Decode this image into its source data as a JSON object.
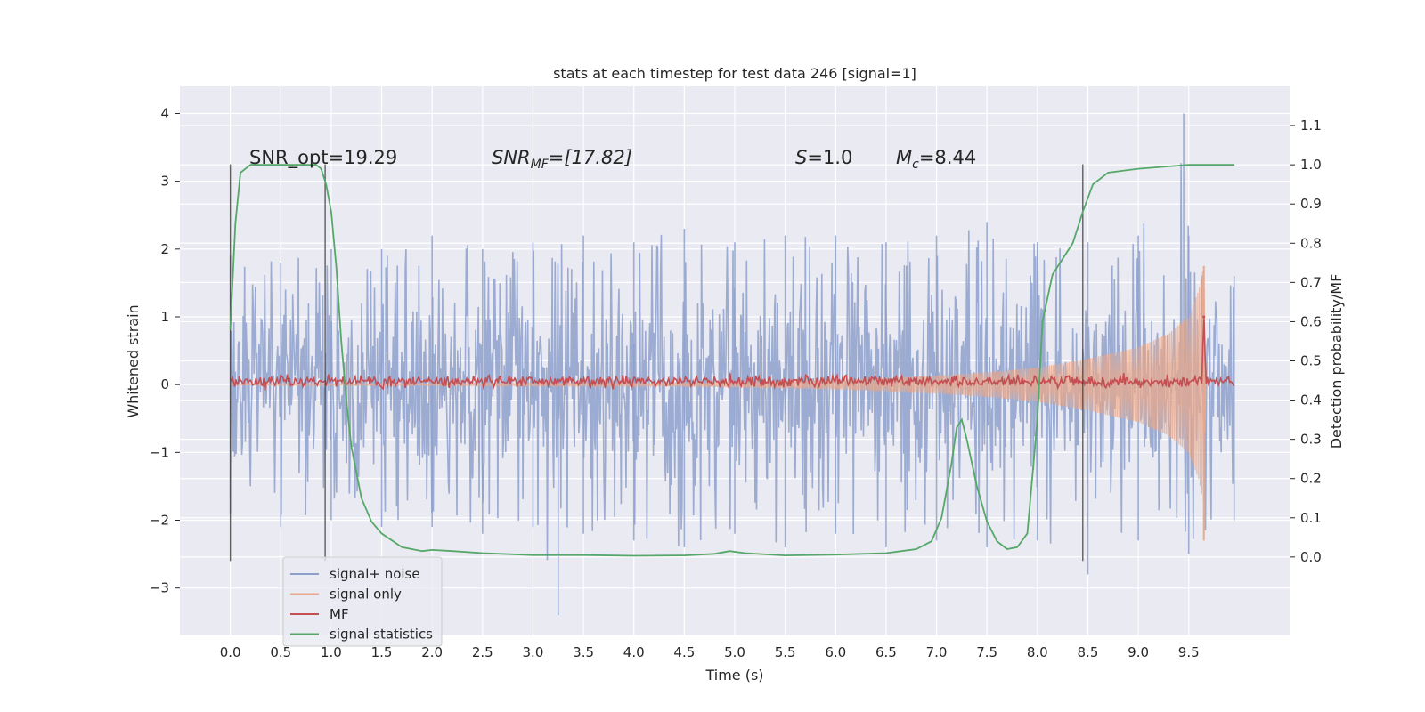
{
  "chart_data": {
    "type": "line",
    "title": "stats at each timestep for test data 246 [signal=1]",
    "xlabel": "Time (s)",
    "ylabel": "Whitened strain",
    "ylabel_right": "Detection probability/MF",
    "xlim": [
      -0.5,
      10.5
    ],
    "ylim": [
      -3.7,
      4.4
    ],
    "ylim_right": [
      -0.2,
      1.2
    ],
    "xticks": [
      "0.0",
      "0.5",
      "1.0",
      "1.5",
      "2.0",
      "2.5",
      "3.0",
      "3.5",
      "4.0",
      "4.5",
      "5.0",
      "5.5",
      "6.0",
      "6.5",
      "7.0",
      "7.5",
      "8.0",
      "8.5",
      "9.0",
      "9.5"
    ],
    "yticks": [
      "−3",
      "−2",
      "−1",
      "0",
      "1",
      "2",
      "3",
      "4"
    ],
    "yticks_right": [
      "0.0",
      "0.1",
      "0.2",
      "0.3",
      "0.4",
      "0.5",
      "0.6",
      "0.7",
      "0.8",
      "0.9",
      "1.0",
      "1.1"
    ],
    "grid": true,
    "legend_position": "lower-left",
    "annotations": {
      "snr_opt": "SNR_opt=19.29",
      "snr_mf_sym": "SNR",
      "snr_mf_sub": "MF",
      "snr_mf_val": "=[17.82]",
      "s_sym": "S",
      "s_val": "=1.0",
      "mc_sym": "M",
      "mc_sub": "c",
      "mc_val": "=8.44"
    },
    "vlines_s": [
      0.0,
      0.94,
      8.45
    ],
    "series": [
      {
        "name": "signal+ noise",
        "color": "#8da0cb",
        "description_envelope_upper": [
          [
            0.0,
            1.9
          ],
          [
            0.5,
            1.8
          ],
          [
            1.0,
            2.0
          ],
          [
            1.5,
            2.0
          ],
          [
            2.0,
            2.2
          ],
          [
            2.5,
            2.0
          ],
          [
            3.0,
            2.1
          ],
          [
            3.5,
            2.2
          ],
          [
            4.0,
            2.1
          ],
          [
            4.5,
            2.3
          ],
          [
            5.0,
            2.1
          ],
          [
            5.5,
            2.2
          ],
          [
            6.0,
            2.2
          ],
          [
            6.5,
            2.1
          ],
          [
            7.0,
            2.2
          ],
          [
            7.5,
            2.4
          ],
          [
            8.0,
            2.1
          ],
          [
            8.5,
            2.1
          ],
          [
            9.0,
            2.2
          ],
          [
            9.45,
            4.0
          ],
          [
            9.5,
            2.2
          ],
          [
            9.95,
            1.6
          ]
        ],
        "description_envelope_lower": [
          [
            0.0,
            -1.9
          ],
          [
            0.5,
            -2.1
          ],
          [
            1.0,
            -2.0
          ],
          [
            1.5,
            -2.1
          ],
          [
            2.0,
            -2.1
          ],
          [
            2.5,
            -2.2
          ],
          [
            3.0,
            -2.1
          ],
          [
            3.25,
            -3.4
          ],
          [
            3.5,
            -2.2
          ],
          [
            4.0,
            -2.3
          ],
          [
            4.5,
            -2.4
          ],
          [
            5.0,
            -2.2
          ],
          [
            5.5,
            -2.4
          ],
          [
            6.0,
            -2.2
          ],
          [
            6.5,
            -2.4
          ],
          [
            7.0,
            -2.3
          ],
          [
            7.5,
            -2.4
          ],
          [
            8.0,
            -2.3
          ],
          [
            8.5,
            -2.8
          ],
          [
            9.0,
            -2.3
          ],
          [
            9.5,
            -2.5
          ],
          [
            9.95,
            -2.0
          ]
        ]
      },
      {
        "name": "signal only",
        "color": "#e8a88b",
        "envelope": [
          [
            0.0,
            0.005
          ],
          [
            2.0,
            0.01
          ],
          [
            4.0,
            0.02
          ],
          [
            5.0,
            0.04
          ],
          [
            6.0,
            0.07
          ],
          [
            7.0,
            0.13
          ],
          [
            7.5,
            0.18
          ],
          [
            8.0,
            0.25
          ],
          [
            8.5,
            0.38
          ],
          [
            9.0,
            0.55
          ],
          [
            9.3,
            0.75
          ],
          [
            9.5,
            1.0
          ],
          [
            9.6,
            1.4
          ],
          [
            9.65,
            1.75
          ],
          [
            9.67,
            0.0
          ]
        ]
      },
      {
        "name": "MF",
        "color": "#c44e52",
        "baseline": 0.05,
        "peak": [
          9.65,
          1.0
        ]
      },
      {
        "name": "signal statistics",
        "color": "#55a868",
        "points": [
          [
            0.0,
            0.58
          ],
          [
            0.05,
            0.85
          ],
          [
            0.1,
            0.98
          ],
          [
            0.2,
            1.0
          ],
          [
            0.6,
            1.0
          ],
          [
            0.85,
            1.0
          ],
          [
            0.9,
            0.99
          ],
          [
            0.95,
            0.95
          ],
          [
            1.0,
            0.88
          ],
          [
            1.05,
            0.74
          ],
          [
            1.1,
            0.55
          ],
          [
            1.15,
            0.4
          ],
          [
            1.2,
            0.28
          ],
          [
            1.3,
            0.15
          ],
          [
            1.4,
            0.09
          ],
          [
            1.5,
            0.06
          ],
          [
            1.7,
            0.025
          ],
          [
            1.9,
            0.015
          ],
          [
            2.0,
            0.018
          ],
          [
            2.2,
            0.015
          ],
          [
            2.5,
            0.01
          ],
          [
            3.0,
            0.005
          ],
          [
            3.5,
            0.005
          ],
          [
            4.0,
            0.003
          ],
          [
            4.5,
            0.004
          ],
          [
            4.8,
            0.008
          ],
          [
            4.95,
            0.015
          ],
          [
            5.1,
            0.01
          ],
          [
            5.5,
            0.004
          ],
          [
            6.0,
            0.006
          ],
          [
            6.5,
            0.01
          ],
          [
            6.8,
            0.02
          ],
          [
            6.95,
            0.04
          ],
          [
            7.05,
            0.1
          ],
          [
            7.15,
            0.24
          ],
          [
            7.2,
            0.33
          ],
          [
            7.25,
            0.35
          ],
          [
            7.3,
            0.3
          ],
          [
            7.4,
            0.18
          ],
          [
            7.5,
            0.09
          ],
          [
            7.6,
            0.04
          ],
          [
            7.7,
            0.02
          ],
          [
            7.8,
            0.025
          ],
          [
            7.9,
            0.06
          ],
          [
            8.0,
            0.35
          ],
          [
            8.05,
            0.6
          ],
          [
            8.15,
            0.72
          ],
          [
            8.25,
            0.76
          ],
          [
            8.35,
            0.8
          ],
          [
            8.45,
            0.88
          ],
          [
            8.55,
            0.95
          ],
          [
            8.7,
            0.98
          ],
          [
            9.0,
            0.99
          ],
          [
            9.5,
            1.0
          ],
          [
            9.95,
            1.0
          ]
        ]
      }
    ]
  }
}
